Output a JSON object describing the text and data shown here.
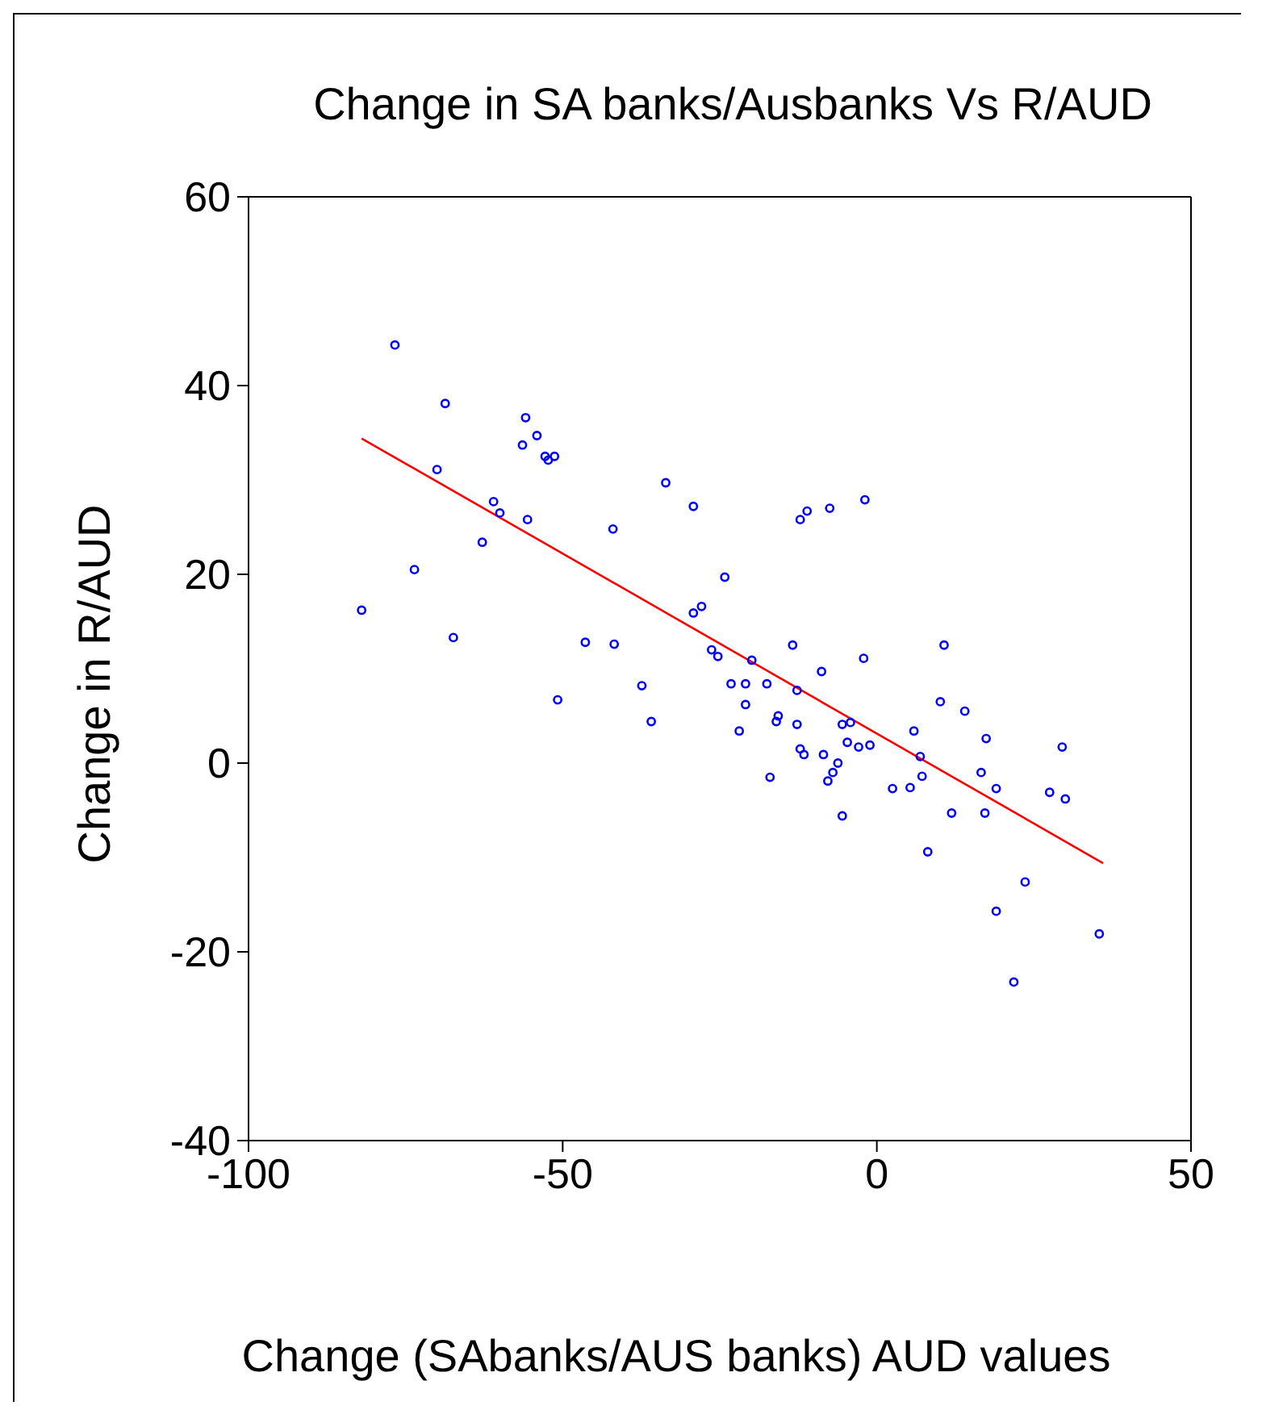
{
  "chart_data": {
    "type": "scatter",
    "title": "Change in SA banks/Ausbanks Vs R/AUD",
    "xlabel": "Change (SAbanks/AUS banks) AUD values",
    "ylabel": "Change in R/AUD",
    "xlim": [
      -100,
      50
    ],
    "xticks": [
      -100,
      -50,
      0,
      50
    ],
    "ylim": [
      -40,
      60
    ],
    "yticks": [
      -40,
      -20,
      0,
      20,
      40,
      60
    ],
    "grid": false,
    "legend": false,
    "marker": "circle",
    "series": [
      {
        "color": "#0000ff",
        "x": [
          -82.0,
          -76.7,
          -73.6,
          -70.0,
          -68.7,
          -67.4,
          -62.8,
          -61.0,
          -60.0,
          -55.9,
          -56.4,
          -55.6,
          -54.1,
          -52.8,
          -52.3,
          -51.3,
          -50.8,
          -46.4,
          -42.0,
          -41.8,
          -37.4,
          -35.9,
          -33.6,
          -29.2,
          -29.2,
          -27.9,
          -26.3,
          -25.3,
          -24.2,
          -23.2,
          -21.9,
          -20.9,
          -20.9,
          -19.9,
          -17.5,
          -17.0,
          -16.0,
          -15.7,
          -13.4,
          -12.7,
          -12.2,
          -11.1,
          -12.2,
          -11.6,
          -12.7,
          -8.8,
          -8.5,
          -7.5,
          -7.8,
          -7.0,
          -6.2,
          -5.5,
          -5.5,
          -4.7,
          -4.2,
          -2.9,
          -2.1,
          -1.9,
          -1.1,
          2.5,
          5.3,
          5.9,
          6.9,
          7.2,
          8.1,
          10.1,
          10.7,
          11.9,
          14.0,
          16.6,
          17.4,
          17.2,
          19.0,
          19.0,
          21.8,
          23.6,
          27.5,
          29.5,
          30.0,
          35.4
        ],
        "values": [
          16.2,
          44.3,
          20.5,
          31.1,
          38.1,
          13.3,
          23.4,
          27.7,
          26.5,
          36.6,
          33.7,
          25.8,
          34.7,
          32.5,
          32.1,
          32.5,
          6.7,
          12.8,
          24.8,
          12.6,
          8.2,
          4.4,
          29.7,
          27.2,
          15.9,
          16.6,
          12.0,
          11.3,
          19.7,
          8.4,
          3.4,
          8.4,
          6.2,
          10.9,
          8.4,
          -1.5,
          4.4,
          5.0,
          12.5,
          7.7,
          25.8,
          26.7,
          1.5,
          0.9,
          4.1,
          9.7,
          0.9,
          27.0,
          -1.9,
          -1.0,
          0,
          -5.6,
          4.1,
          2.2,
          4.3,
          1.7,
          11.1,
          27.9,
          1.9,
          -2.7,
          -2.6,
          3.4,
          0.7,
          -1.4,
          -9.4,
          6.5,
          12.5,
          -5.3,
          5.5,
          -1.0,
          2.6,
          -5.3,
          -2.7,
          -15.7,
          -23.2,
          -12.6,
          -3.1,
          1.7,
          -3.8,
          -18.1
        ]
      },
      {
        "type": "line",
        "color": "#ff0000",
        "marker": "none",
        "line_style": "solid",
        "x": [
          -82,
          36
        ],
        "values": [
          34.4,
          -10.6
        ]
      }
    ]
  }
}
